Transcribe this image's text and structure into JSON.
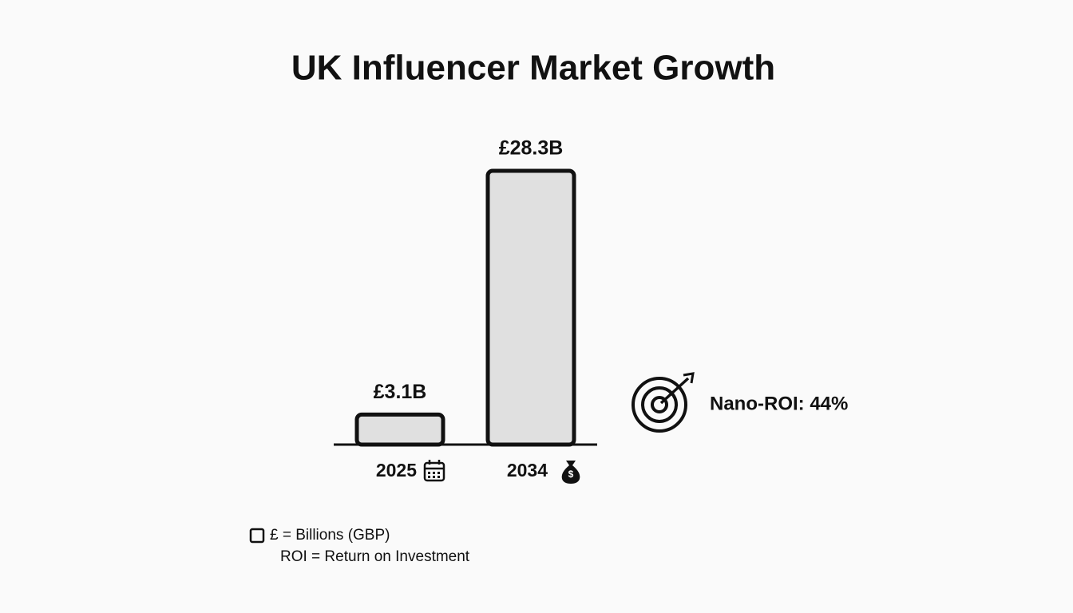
{
  "chart_data": {
    "type": "bar",
    "title": "UK Influencer Market Growth",
    "categories": [
      "2025",
      "2034"
    ],
    "values": [
      3.1,
      28.3
    ],
    "value_labels": [
      "£3.1B",
      "£28.3B"
    ],
    "color": "#e0e0e0",
    "annotations": [
      "Nano-ROI: 44%"
    ],
    "notes": [
      "£ = Billions (GBP)",
      "ROI = Return on Investment"
    ]
  }
}
